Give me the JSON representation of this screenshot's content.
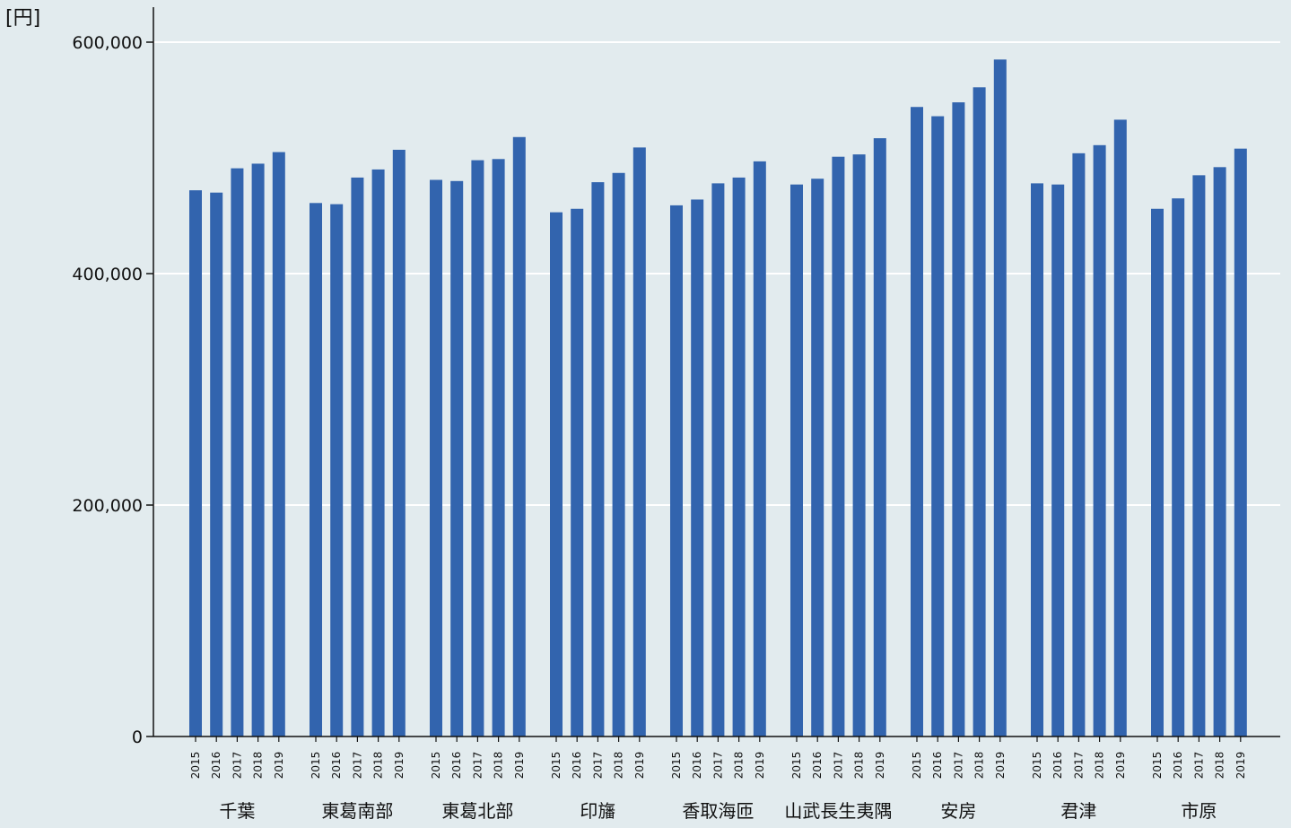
{
  "chart_data": {
    "type": "bar",
    "title": "",
    "xlabel": "",
    "ylabel": "",
    "unit_label": "[円]",
    "ylim": [
      0,
      600000
    ],
    "yticks": [
      0,
      200000,
      400000,
      600000
    ],
    "ytick_labels": [
      "0",
      "200,000",
      "400,000",
      "600,000"
    ],
    "grid": true,
    "years": [
      "2015",
      "2016",
      "2017",
      "2018",
      "2019"
    ],
    "groups": [
      {
        "name": "千葉",
        "values": [
          472000,
          470000,
          491000,
          495000,
          505000
        ]
      },
      {
        "name": "東葛南部",
        "values": [
          461000,
          460000,
          483000,
          490000,
          507000
        ]
      },
      {
        "name": "東葛北部",
        "values": [
          481000,
          480000,
          498000,
          499000,
          518000
        ]
      },
      {
        "name": "印旛",
        "values": [
          453000,
          456000,
          479000,
          487000,
          509000
        ]
      },
      {
        "name": "香取海匝",
        "values": [
          459000,
          464000,
          478000,
          483000,
          497000
        ]
      },
      {
        "name": "山武長生夷隅",
        "values": [
          477000,
          482000,
          501000,
          503000,
          517000
        ]
      },
      {
        "name": "安房",
        "values": [
          544000,
          536000,
          548000,
          561000,
          585000
        ]
      },
      {
        "name": "君津",
        "values": [
          478000,
          477000,
          504000,
          511000,
          533000
        ]
      },
      {
        "name": "市原",
        "values": [
          456000,
          465000,
          485000,
          492000,
          508000
        ]
      }
    ],
    "colors": {
      "bar": "#3264ae",
      "axis": "#111111",
      "grid": "#ffffff",
      "background": "#e2ebee"
    }
  }
}
